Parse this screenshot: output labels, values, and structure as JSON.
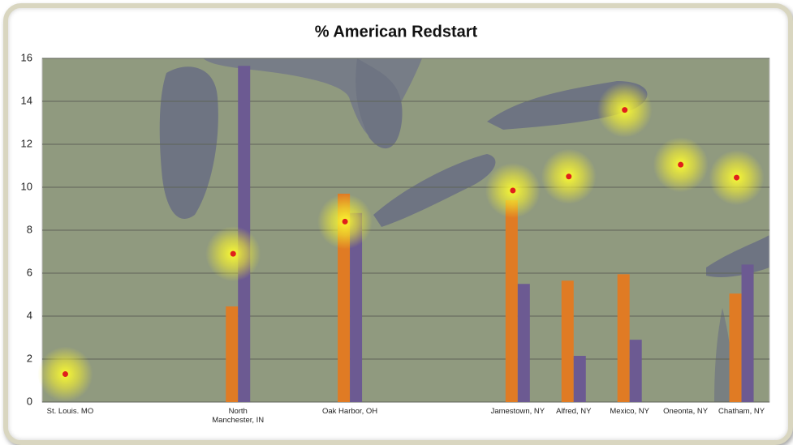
{
  "chart_data": {
    "type": "bar",
    "title": "% American Redstart",
    "categories": [
      "St. Louis. MO",
      null,
      null,
      "North Manchester, IN",
      null,
      "Oak Harbor, OH",
      null,
      null,
      "Jamestown, NY",
      "Alfred, NY",
      "Mexico, NY",
      "Oneonta, NY",
      "Chatham, NY"
    ],
    "series": [
      {
        "color": "#e07b24",
        "values": [
          null,
          null,
          null,
          4.45,
          null,
          9.7,
          null,
          null,
          9.4,
          5.65,
          5.95,
          null,
          5.05
        ]
      },
      {
        "color": "#6c5a92",
        "values": [
          null,
          null,
          null,
          15.65,
          null,
          8.8,
          null,
          null,
          5.5,
          2.15,
          2.9,
          null,
          6.4
        ]
      },
      {
        "type": "scatter",
        "color": "#e0201c",
        "values": [
          1.3,
          null,
          null,
          6.9,
          null,
          8.4,
          null,
          null,
          9.85,
          10.5,
          13.6,
          11.05,
          10.45
        ]
      }
    ],
    "ylim": [
      0,
      16
    ],
    "yticks": [
      0,
      2,
      4,
      6,
      8,
      10,
      12,
      14,
      16
    ],
    "grid": true
  }
}
